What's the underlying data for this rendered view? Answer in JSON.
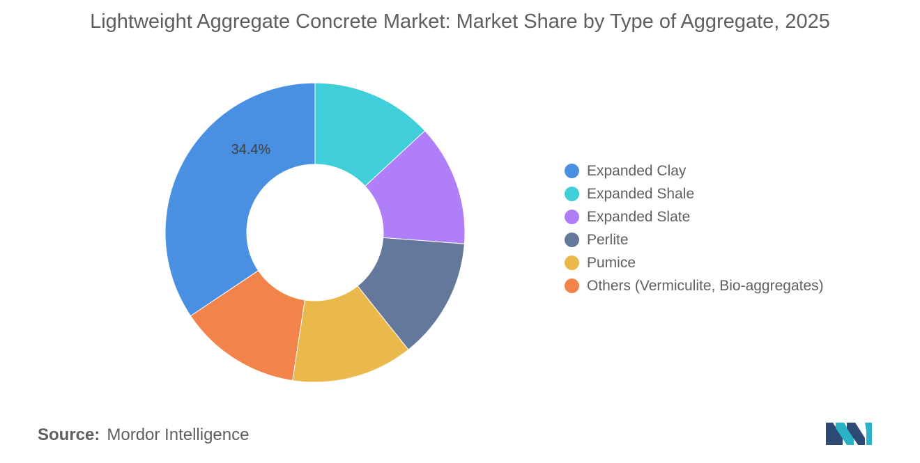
{
  "header": {
    "title": "Lightweight Aggregate Concrete Market: Market Share by Type of Aggregate, 2025"
  },
  "chart_data": {
    "type": "pie",
    "donut": true,
    "categories": [
      "Expanded Clay",
      "Expanded Shale",
      "Expanded Slate",
      "Perlite",
      "Pumice",
      "Others (Vermiculite, Bio-aggregates)"
    ],
    "values": [
      34.4,
      13.1,
      13.1,
      13.1,
      13.1,
      13.2
    ],
    "colors": [
      "#4a90e2",
      "#40cfd9",
      "#b07ef8",
      "#63789a",
      "#ebb84b",
      "#f2834a"
    ],
    "data_labels": [
      {
        "category": "Expanded Clay",
        "text": "34.4%"
      }
    ],
    "legend_position": "right"
  },
  "footer": {
    "source_label": "Source:",
    "source_value": "Mordor Intelligence"
  },
  "logo": {
    "icon": "mordor-intelligence-logo-icon",
    "colors": [
      "#2c4a73",
      "#2ab3c6"
    ]
  }
}
